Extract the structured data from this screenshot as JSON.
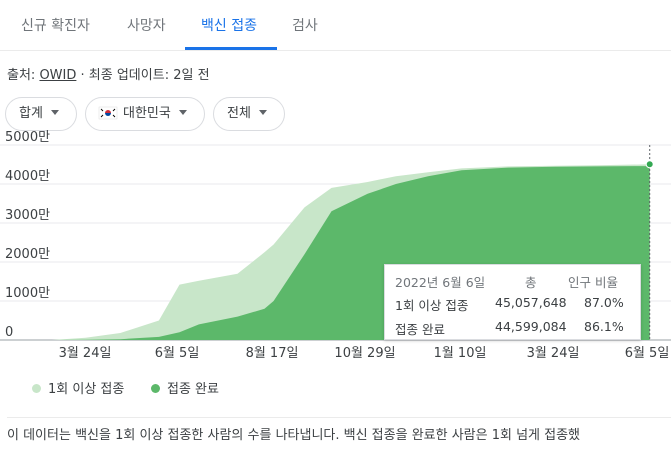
{
  "tabs": [
    {
      "label": "신규 확진자"
    },
    {
      "label": "사망자"
    },
    {
      "label": "백신 접종",
      "active": true
    },
    {
      "label": "검사"
    }
  ],
  "source": {
    "prefix": "출처:",
    "link": "OWID",
    "updated": "· 최종 업데이트: 2일 전"
  },
  "filters": {
    "metric": "합계",
    "country": "대한민국",
    "scope": "전체"
  },
  "chart_data": {
    "type": "area",
    "x_ticks": [
      "3월 24일",
      "6월 5일",
      "8월 17일",
      "10월 29일",
      "1월 10일",
      "3월 24일",
      "6월 5일"
    ],
    "y_ticks": [
      "0",
      "1000만",
      "2000만",
      "3000만",
      "4000만",
      "5000만"
    ],
    "ylim": [
      0,
      5000
    ],
    "y_unit": "만",
    "grid": true,
    "series": [
      {
        "name": "1회 이상 접종",
        "color": "#c8e6c9",
        "x": [
          "2021-02-26",
          "2021-03-24",
          "2021-04-20",
          "2021-05-20",
          "2021-06-05",
          "2021-06-20",
          "2021-07-20",
          "2021-08-10",
          "2021-08-17",
          "2021-09-10",
          "2021-10-01",
          "2021-10-29",
          "2021-11-20",
          "2021-12-15",
          "2022-01-10",
          "2022-02-15",
          "2022-03-24",
          "2022-04-25",
          "2022-06-05"
        ],
        "y": [
          0,
          60,
          180,
          500,
          1420,
          1520,
          1700,
          2250,
          2450,
          3400,
          3900,
          4050,
          4200,
          4300,
          4400,
          4450,
          4470,
          4480,
          4506
        ]
      },
      {
        "name": "접종 완료",
        "color": "#5cb86a",
        "x": [
          "2021-02-26",
          "2021-03-24",
          "2021-04-20",
          "2021-05-20",
          "2021-06-05",
          "2021-06-20",
          "2021-07-20",
          "2021-08-10",
          "2021-08-17",
          "2021-09-10",
          "2021-10-01",
          "2021-10-29",
          "2021-11-20",
          "2021-12-15",
          "2022-01-10",
          "2022-02-15",
          "2022-03-24",
          "2022-04-25",
          "2022-06-05"
        ],
        "y": [
          0,
          5,
          20,
          80,
          200,
          400,
          600,
          800,
          1000,
          2200,
          3300,
          3750,
          4000,
          4200,
          4350,
          4420,
          4440,
          4450,
          4460
        ]
      }
    ]
  },
  "tooltip": {
    "date": "2022년 6월 6일",
    "col_total": "총",
    "col_ratio": "인구 비율",
    "rows": [
      {
        "label": "1회 이상 접종",
        "total": "45,057,648",
        "ratio": "87.0%"
      },
      {
        "label": "접종 완료",
        "total": "44,599,084",
        "ratio": "86.1%"
      }
    ]
  },
  "legend": [
    {
      "label": "1회 이상 접종",
      "color": "#c8e6c9"
    },
    {
      "label": "접종 완료",
      "color": "#5cb86a"
    }
  ],
  "description": "이 데이터는 백신을 1회 이상 접종한 사람의 수를 나타냅니다. 백신 접종을 완료한 사람은 1회 넘게 접종했"
}
